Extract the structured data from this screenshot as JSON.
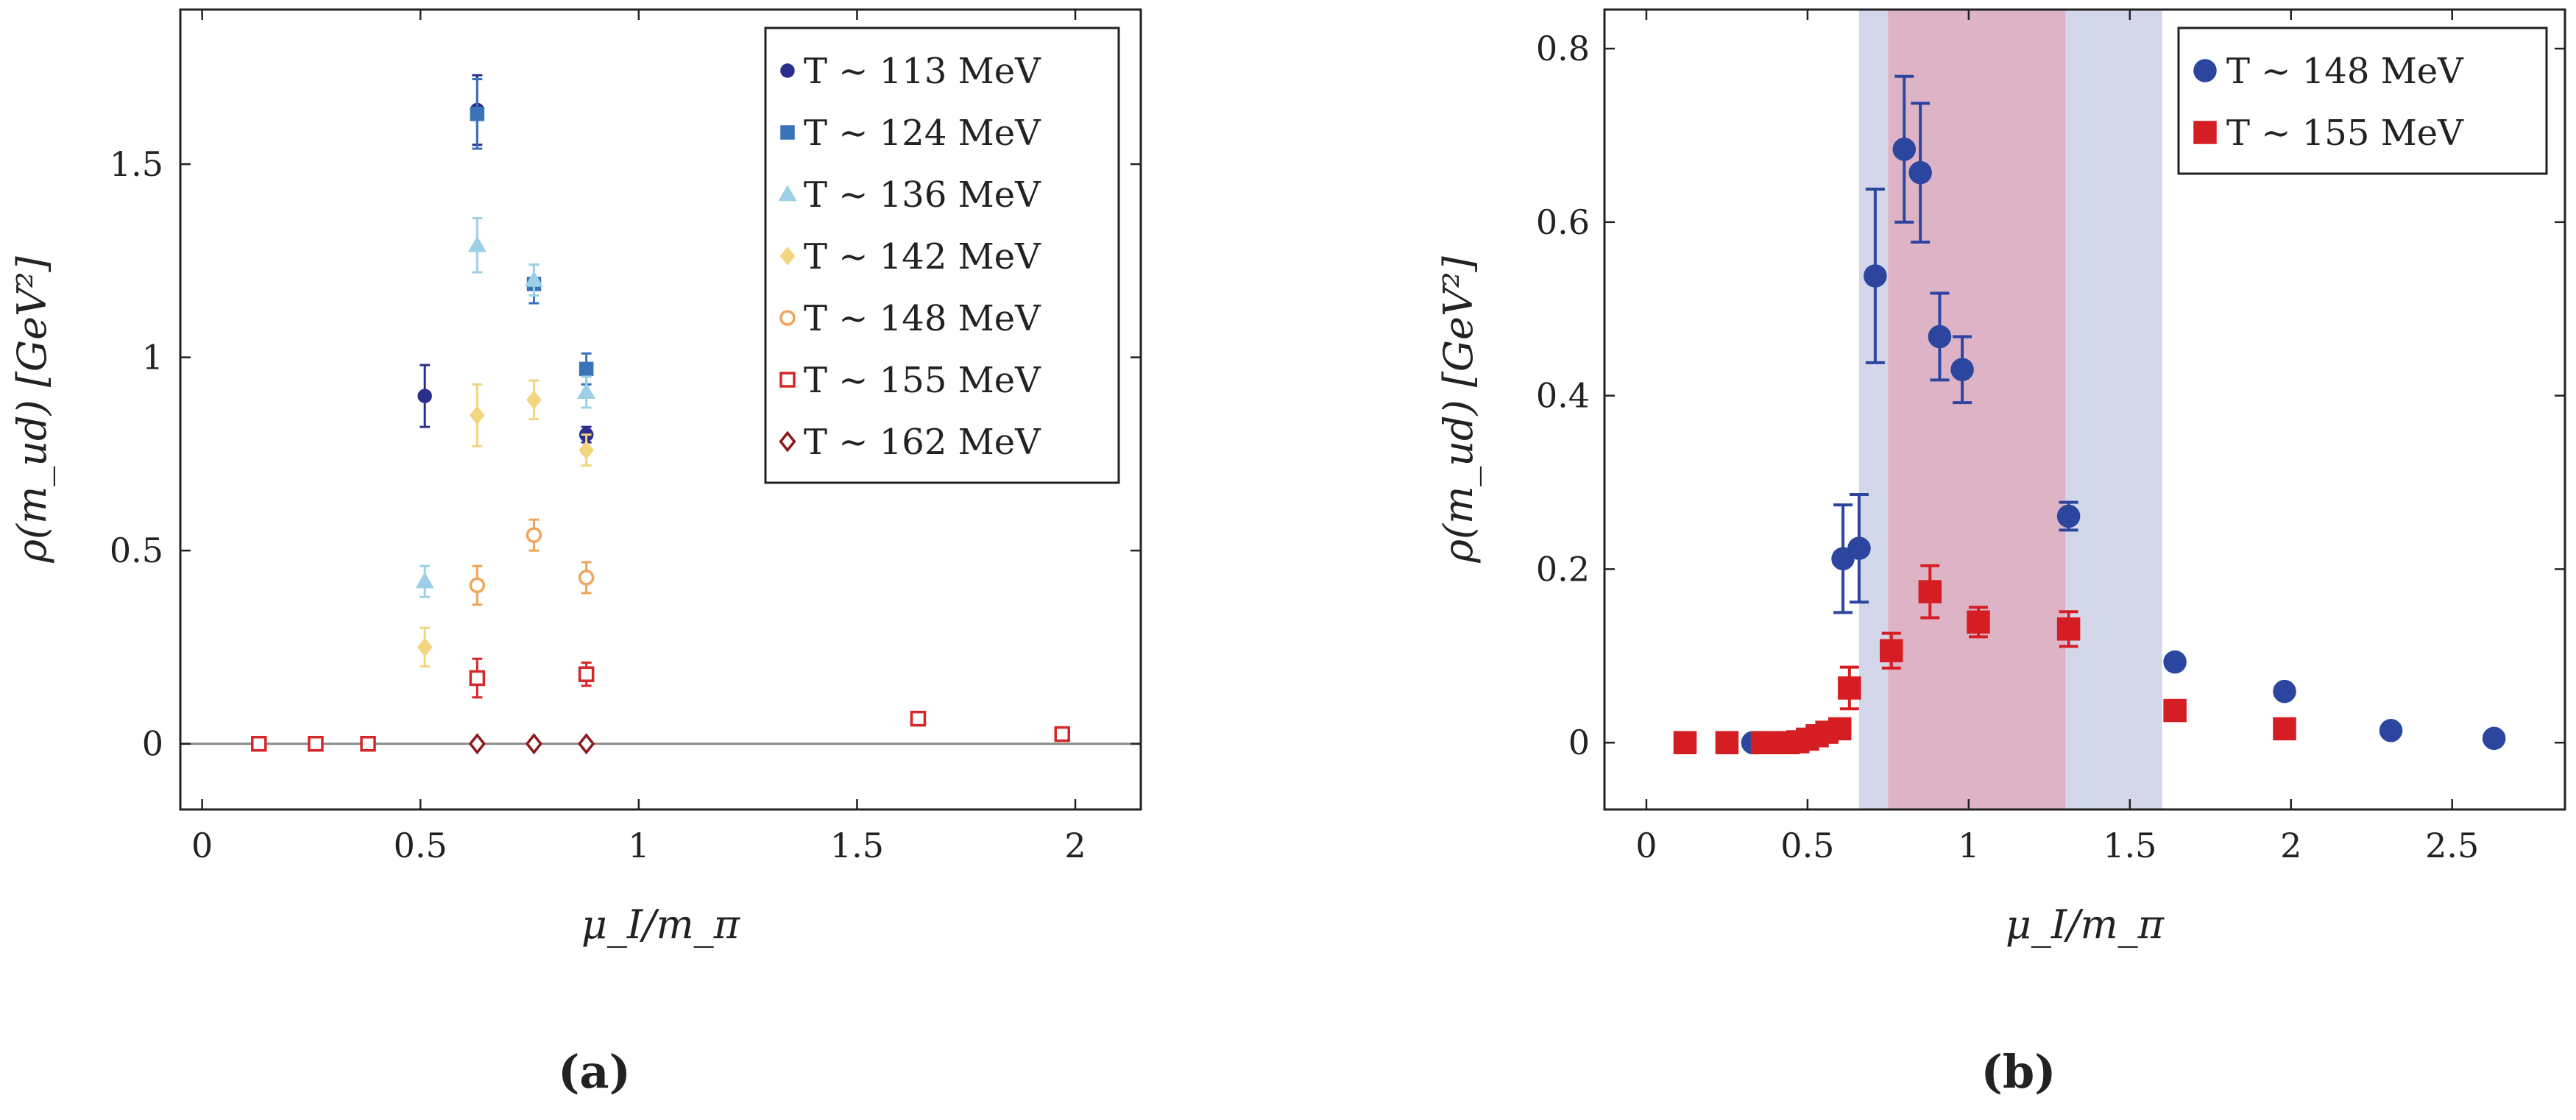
{
  "chart_data": [
    {
      "type": "scatter",
      "panel_label": "(a)",
      "xlabel": "μ_I/m_π",
      "ylabel": "ρ(m_ud) [GeV²]",
      "xlim": [
        -0.05,
        2.15
      ],
      "ylim": [
        -0.17,
        1.9
      ],
      "xticks": [
        0,
        0.5,
        1,
        1.5,
        2
      ],
      "xtick_labels": [
        "0",
        "0.5",
        "1",
        "1.5",
        "2"
      ],
      "yticks": [
        0,
        0.5,
        1,
        1.5
      ],
      "ytick_labels": [
        "0",
        "0.5",
        "1",
        "1.5"
      ],
      "zero_line": true,
      "legend_position": "top-right",
      "series": [
        {
          "name": "T ∼ 113 MeV",
          "color": "#2a2e8c",
          "marker": "circle",
          "points": [
            {
              "x": 0.51,
              "y": 0.9,
              "err": 0.08
            },
            {
              "x": 0.63,
              "y": 1.64,
              "err": 0.09
            },
            {
              "x": 0.88,
              "y": 0.8,
              "err": 0.02
            }
          ]
        },
        {
          "name": "T ∼ 124 MeV",
          "color": "#3a72b8",
          "marker": "square",
          "points": [
            {
              "x": 0.63,
              "y": 1.63,
              "err": 0.09
            },
            {
              "x": 0.76,
              "y": 1.19,
              "err": 0.05
            },
            {
              "x": 0.88,
              "y": 0.97,
              "err": 0.04
            }
          ]
        },
        {
          "name": "T ∼ 136 MeV",
          "color": "#9dd0e6",
          "marker": "triangle",
          "points": [
            {
              "x": 0.51,
              "y": 0.42,
              "err": 0.04
            },
            {
              "x": 0.63,
              "y": 1.29,
              "err": 0.07
            },
            {
              "x": 0.76,
              "y": 1.2,
              "err": 0.04
            },
            {
              "x": 0.88,
              "y": 0.91,
              "err": 0.04
            }
          ]
        },
        {
          "name": "T ∼ 142 MeV",
          "color": "#f2d57e",
          "marker": "diamond",
          "points": [
            {
              "x": 0.51,
              "y": 0.25,
              "err": 0.05
            },
            {
              "x": 0.63,
              "y": 0.85,
              "err": 0.08
            },
            {
              "x": 0.76,
              "y": 0.89,
              "err": 0.05
            },
            {
              "x": 0.88,
              "y": 0.76,
              "err": 0.04
            }
          ]
        },
        {
          "name": "T ∼ 148 MeV",
          "color": "#f0a55a",
          "marker": "circle-open",
          "points": [
            {
              "x": 0.63,
              "y": 0.41,
              "err": 0.05
            },
            {
              "x": 0.76,
              "y": 0.54,
              "err": 0.04
            },
            {
              "x": 0.88,
              "y": 0.43,
              "err": 0.04
            }
          ]
        },
        {
          "name": "T ∼ 155 MeV",
          "color": "#d62728",
          "marker": "square-open",
          "points": [
            {
              "x": 0.13,
              "y": 0.0,
              "err": 0
            },
            {
              "x": 0.26,
              "y": 0.0,
              "err": 0
            },
            {
              "x": 0.38,
              "y": 0.0,
              "err": 0
            },
            {
              "x": 0.63,
              "y": 0.17,
              "err": 0.05
            },
            {
              "x": 0.88,
              "y": 0.18,
              "err": 0.03
            },
            {
              "x": 1.64,
              "y": 0.065,
              "err": 0
            },
            {
              "x": 1.97,
              "y": 0.025,
              "err": 0
            }
          ]
        },
        {
          "name": "T ∼ 162 MeV",
          "color": "#8b1a1a",
          "marker": "diamond-open",
          "points": [
            {
              "x": 0.63,
              "y": 0.0,
              "err": 0
            },
            {
              "x": 0.76,
              "y": 0.0,
              "err": 0
            },
            {
              "x": 0.88,
              "y": 0.0,
              "err": 0
            }
          ]
        }
      ]
    },
    {
      "type": "scatter",
      "panel_label": "(b)",
      "xlabel": "μ_I/m_π",
      "ylabel": "ρ(m_ud) [GeV²]",
      "xlim": [
        -0.13,
        2.85
      ],
      "ylim": [
        -0.077,
        0.845
      ],
      "xticks": [
        0,
        0.5,
        1,
        1.5,
        2,
        2.5
      ],
      "xtick_labels": [
        "0",
        "0.5",
        "1",
        "1.5",
        "2",
        "2.5"
      ],
      "yticks": [
        0,
        0.2,
        0.4,
        0.6,
        0.8
      ],
      "ytick_labels": [
        "0",
        "0.2",
        "0.4",
        "0.6",
        "0.8"
      ],
      "legend_position": "top-right",
      "bands": [
        {
          "x_from": 0.66,
          "x_to": 1.6,
          "color": "#d4d6ea"
        },
        {
          "x_from": 0.75,
          "x_to": 1.3,
          "color": "#deb3c5"
        }
      ],
      "series": [
        {
          "name": "T ∼ 148 MeV",
          "color": "#2c46a0",
          "marker": "circle",
          "points": [
            {
              "x": 0.33,
              "y": 0.0,
              "err": 0
            },
            {
              "x": 0.61,
              "y": 0.212,
              "err": 0.062
            },
            {
              "x": 0.66,
              "y": 0.224,
              "err": 0.062
            },
            {
              "x": 0.71,
              "y": 0.538,
              "err": 0.1
            },
            {
              "x": 0.8,
              "y": 0.684,
              "err": 0.084
            },
            {
              "x": 0.85,
              "y": 0.657,
              "err": 0.08
            },
            {
              "x": 0.91,
              "y": 0.468,
              "err": 0.05
            },
            {
              "x": 0.98,
              "y": 0.43,
              "err": 0.038
            },
            {
              "x": 1.31,
              "y": 0.261,
              "err": 0.016
            },
            {
              "x": 1.64,
              "y": 0.093,
              "err": 0
            },
            {
              "x": 1.98,
              "y": 0.059,
              "err": 0
            },
            {
              "x": 2.31,
              "y": 0.014,
              "err": 0
            },
            {
              "x": 2.63,
              "y": 0.005,
              "err": 0
            }
          ]
        },
        {
          "name": "T ∼ 155 MeV",
          "color": "#d51e23",
          "marker": "square",
          "points": [
            {
              "x": 0.12,
              "y": 0.0,
              "err": 0
            },
            {
              "x": 0.25,
              "y": 0.0,
              "err": 0
            },
            {
              "x": 0.36,
              "y": 0.0,
              "err": 0
            },
            {
              "x": 0.39,
              "y": 0.0,
              "err": 0
            },
            {
              "x": 0.44,
              "y": 0.0,
              "err": 0
            },
            {
              "x": 0.47,
              "y": 0.001,
              "err": 0
            },
            {
              "x": 0.5,
              "y": 0.004,
              "err": 0
            },
            {
              "x": 0.53,
              "y": 0.008,
              "err": 0
            },
            {
              "x": 0.56,
              "y": 0.012,
              "err": 0
            },
            {
              "x": 0.6,
              "y": 0.016,
              "err": 0
            },
            {
              "x": 0.63,
              "y": 0.063,
              "err": 0.024
            },
            {
              "x": 0.76,
              "y": 0.106,
              "err": 0.02
            },
            {
              "x": 0.88,
              "y": 0.174,
              "err": 0.03
            },
            {
              "x": 1.03,
              "y": 0.139,
              "err": 0.017
            },
            {
              "x": 1.31,
              "y": 0.131,
              "err": 0.02
            },
            {
              "x": 1.64,
              "y": 0.037,
              "err": 0
            },
            {
              "x": 1.98,
              "y": 0.016,
              "err": 0
            }
          ]
        }
      ]
    }
  ]
}
